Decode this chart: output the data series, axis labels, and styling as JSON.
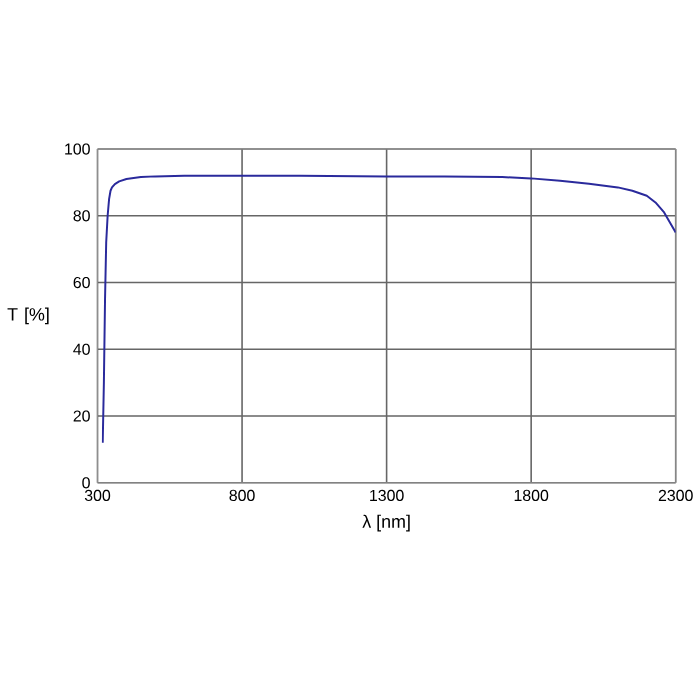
{
  "chart_data": {
    "type": "line",
    "xlabel": "λ [nm]",
    "ylabel": "T [%]",
    "x": [
      318,
      322,
      326,
      330,
      335,
      340,
      345,
      350,
      360,
      375,
      400,
      450,
      500,
      600,
      800,
      1000,
      1300,
      1500,
      1700,
      1800,
      1900,
      2000,
      2100,
      2150,
      2200,
      2230,
      2260,
      2280,
      2300
    ],
    "series": [
      {
        "color": "#2a2a9c",
        "values": [
          12,
          30,
          55,
          72,
          80,
          85,
          87.5,
          88.5,
          89.5,
          90.3,
          91,
          91.6,
          91.8,
          92,
          92,
          92,
          91.8,
          91.8,
          91.6,
          91.2,
          90.5,
          89.6,
          88.5,
          87.5,
          86,
          84,
          81,
          78,
          75
        ]
      }
    ],
    "xlim": [
      300,
      2300
    ],
    "ylim": [
      0,
      100
    ],
    "xticks": [
      300,
      800,
      1300,
      1800,
      2300
    ],
    "yticks": [
      0,
      20,
      40,
      60,
      80,
      100
    ],
    "grid": true,
    "marker": "none",
    "line_style": "solid"
  }
}
